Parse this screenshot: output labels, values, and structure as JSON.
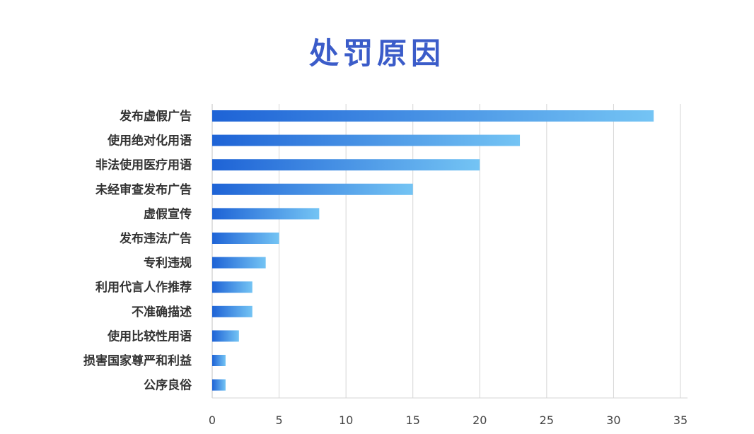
{
  "chart_data": {
    "type": "bar",
    "orientation": "horizontal",
    "title": "处罚原因",
    "xlabel": "",
    "ylabel": "",
    "categories": [
      "发布虚假广告",
      "使用绝对化用语",
      "非法使用医疗用语",
      "未经审查发布广告",
      "虚假宣传",
      "发布违法广告",
      "专利违规",
      "利用代言人作推荐",
      "不准确描述",
      "使用比较性用语",
      "损害国家尊严和利益",
      "公序良俗"
    ],
    "values": [
      33,
      23,
      20,
      15,
      8,
      5,
      4,
      3,
      3,
      2,
      1,
      1
    ],
    "xlim": [
      0,
      35
    ],
    "xticks": [
      0,
      5,
      10,
      15,
      20,
      25,
      30,
      35
    ],
    "grid": true,
    "legend": "none",
    "colors": {
      "title": "#3b5cc9",
      "bar_start": "#1e63d6",
      "bar_end": "#74c4f4",
      "grid": "#d6d6d6",
      "text": "#333333"
    }
  }
}
